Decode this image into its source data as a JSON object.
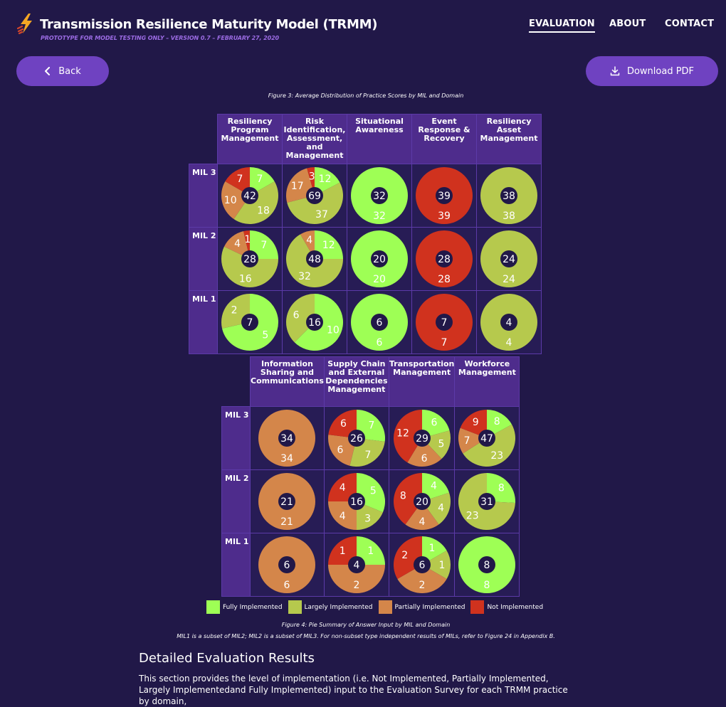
{
  "header": {
    "title": "Transmission Resilience Maturity Model (TRMM)",
    "subtitle": "PROTOTYPE FOR MODEL TESTING ONLY – VERSION 0.7 – FEBRUARY 27, 2020",
    "logo_icon": "lightning-bolt-icon"
  },
  "nav": [
    {
      "label": "EVALUATION",
      "active": true
    },
    {
      "label": "ABOUT",
      "active": false
    },
    {
      "label": "CONTACT",
      "active": false
    }
  ],
  "actions": {
    "back_label": "Back",
    "download_label": "Download PDF"
  },
  "colors": {
    "fully": "#9eff55",
    "largely": "#b6c94d",
    "partially": "#d4864a",
    "not": "#d0321e",
    "accent": "#6f42c1",
    "background": "#211848"
  },
  "captions": {
    "figure3": "Figure 3: Average Distribution of Practice Scores by MIL and Domain",
    "figure4": "Figure 4: Pie Summary of Answer Input by MIL and Domain",
    "subset_note": "MIL1 is a subset of MIL2; MIL2 is a subset of MIL3. For non-subset type independent results of MILs, refer to Figure 24 in Appendix B."
  },
  "chart_data": [
    {
      "type": "pie",
      "title": "Pie Summary of Answer Input by MIL and Domain (part 1)",
      "series_order": [
        "Fully Implemented",
        "Largely Implemented",
        "Partially Implemented",
        "Not Implemented"
      ],
      "domains": [
        "Resiliency Program Management",
        "Risk Identification, Assessment, and Management",
        "Situational Awareness",
        "Event Response & Recovery",
        "Resiliency Asset Management"
      ],
      "rows": [
        {
          "mil": "MIL 3",
          "cells": [
            {
              "total": 42,
              "values": [
                7,
                18,
                10,
                7
              ]
            },
            {
              "total": 69,
              "values": [
                12,
                37,
                17,
                3
              ]
            },
            {
              "total": 32,
              "values": [
                32,
                0,
                0,
                0
              ]
            },
            {
              "total": 39,
              "values": [
                0,
                0,
                0,
                39
              ]
            },
            {
              "total": 38,
              "values": [
                0,
                38,
                0,
                0
              ]
            }
          ]
        },
        {
          "mil": "MIL 2",
          "cells": [
            {
              "total": 28,
              "values": [
                7,
                16,
                4,
                1
              ]
            },
            {
              "total": 48,
              "values": [
                12,
                32,
                4,
                0
              ]
            },
            {
              "total": 20,
              "values": [
                20,
                0,
                0,
                0
              ]
            },
            {
              "total": 28,
              "values": [
                0,
                0,
                0,
                28
              ]
            },
            {
              "total": 24,
              "values": [
                0,
                24,
                0,
                0
              ]
            }
          ]
        },
        {
          "mil": "MIL 1",
          "cells": [
            {
              "total": 7,
              "values": [
                5,
                2,
                0,
                0
              ]
            },
            {
              "total": 16,
              "values": [
                10,
                6,
                0,
                0
              ]
            },
            {
              "total": 6,
              "values": [
                6,
                0,
                0,
                0
              ]
            },
            {
              "total": 7,
              "values": [
                0,
                0,
                0,
                7
              ]
            },
            {
              "total": 4,
              "values": [
                0,
                4,
                0,
                0
              ]
            }
          ]
        }
      ]
    },
    {
      "type": "pie",
      "title": "Pie Summary of Answer Input by MIL and Domain (part 2)",
      "series_order": [
        "Fully Implemented",
        "Largely Implemented",
        "Partially Implemented",
        "Not Implemented"
      ],
      "domains": [
        "Information Sharing and Communications",
        "Supply Chain and External Dependencies Management",
        "Transportation Management",
        "Workforce Management"
      ],
      "rows": [
        {
          "mil": "MIL 3",
          "cells": [
            {
              "total": 34,
              "values": [
                0,
                0,
                34,
                0
              ]
            },
            {
              "total": 26,
              "values": [
                7,
                7,
                6,
                6
              ]
            },
            {
              "total": 29,
              "values": [
                6,
                5,
                6,
                12
              ]
            },
            {
              "total": 47,
              "values": [
                8,
                23,
                7,
                9
              ]
            }
          ]
        },
        {
          "mil": "MIL 2",
          "cells": [
            {
              "total": 21,
              "values": [
                0,
                0,
                21,
                0
              ]
            },
            {
              "total": 16,
              "values": [
                5,
                3,
                4,
                4
              ]
            },
            {
              "total": 20,
              "values": [
                4,
                4,
                4,
                8
              ]
            },
            {
              "total": 31,
              "values": [
                8,
                23,
                0,
                0
              ]
            }
          ]
        },
        {
          "mil": "MIL 1",
          "cells": [
            {
              "total": 6,
              "values": [
                0,
                0,
                6,
                0
              ]
            },
            {
              "total": 4,
              "values": [
                1,
                0,
                2,
                1
              ]
            },
            {
              "total": 6,
              "values": [
                1,
                1,
                2,
                2
              ]
            },
            {
              "total": 8,
              "values": [
                8,
                0,
                0,
                0
              ]
            }
          ]
        }
      ]
    }
  ],
  "legend": [
    {
      "label": "Fully Implemented",
      "color": "#9eff55"
    },
    {
      "label": "Largely Implemented",
      "color": "#b6c94d"
    },
    {
      "label": "Partially Implemented",
      "color": "#d4864a"
    },
    {
      "label": "Not Implemented",
      "color": "#d0321e"
    }
  ],
  "section": {
    "title": "Detailed Evaluation Results",
    "body": "This section provides the level of implementation (i.e. Not Implemented, Partially Implemented, Largely Implementedand Fully Implemented) input to the Evaluation Survey for each TRMM practice by domain,"
  }
}
